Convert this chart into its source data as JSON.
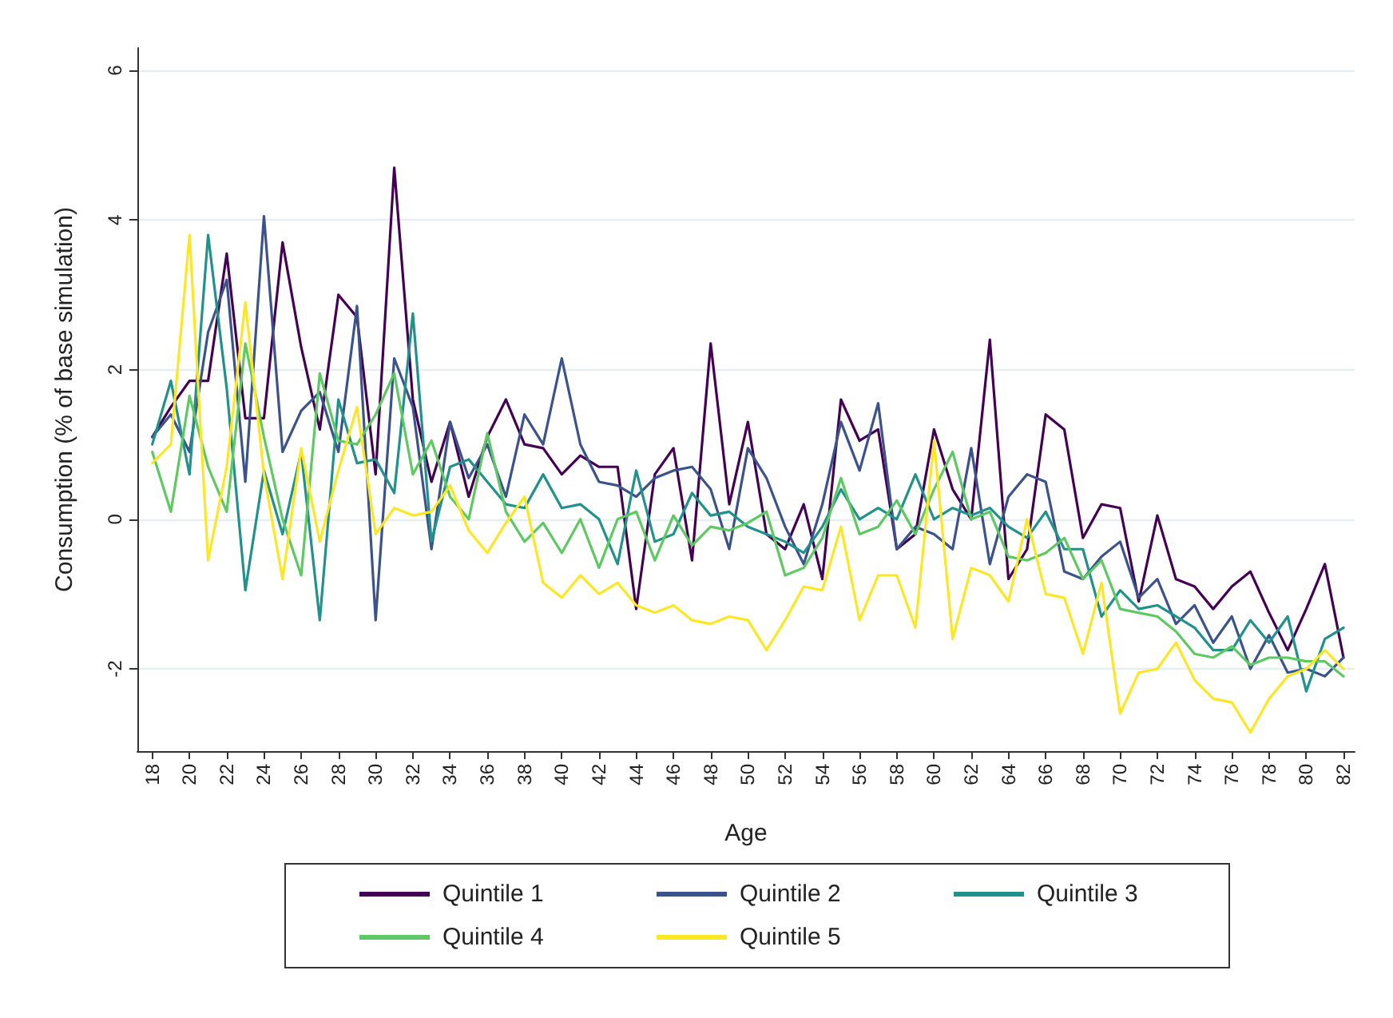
{
  "chart_data": {
    "type": "line",
    "xlabel": "Age",
    "ylabel": "Consumption (% of base simulation)",
    "x": [
      18,
      19,
      20,
      21,
      22,
      23,
      24,
      25,
      26,
      27,
      28,
      29,
      30,
      31,
      32,
      33,
      34,
      35,
      36,
      37,
      38,
      39,
      40,
      41,
      42,
      43,
      44,
      45,
      46,
      47,
      48,
      49,
      50,
      51,
      52,
      53,
      54,
      55,
      56,
      57,
      58,
      59,
      60,
      61,
      62,
      63,
      64,
      65,
      66,
      67,
      68,
      69,
      70,
      71,
      72,
      73,
      74,
      75,
      76,
      77,
      78,
      79,
      80,
      81,
      82
    ],
    "xlim": [
      17.2,
      82.6
    ],
    "xticks": [
      18,
      20,
      22,
      24,
      26,
      28,
      30,
      32,
      34,
      36,
      38,
      40,
      42,
      44,
      46,
      48,
      50,
      52,
      54,
      56,
      58,
      60,
      62,
      64,
      66,
      68,
      70,
      72,
      74,
      76,
      78,
      80,
      82
    ],
    "ylim": [
      -3.1,
      6.3
    ],
    "yticks": [
      -2,
      0,
      2,
      4,
      6
    ],
    "grid": "y",
    "legend": "bottom",
    "marker": "none",
    "line_style": "solid",
    "series": [
      {
        "name": "Quintile 1",
        "color": "#440154",
        "values": [
          1.1,
          1.5,
          1.85,
          1.85,
          3.55,
          1.35,
          1.35,
          3.7,
          2.3,
          1.2,
          3.0,
          2.7,
          0.6,
          4.7,
          1.6,
          0.5,
          1.3,
          0.3,
          1.1,
          1.6,
          1.0,
          0.95,
          0.6,
          0.85,
          0.7,
          0.7,
          -1.2,
          0.6,
          0.95,
          -0.55,
          2.35,
          0.2,
          1.3,
          -0.2,
          -0.4,
          0.2,
          -0.8,
          1.6,
          1.05,
          1.2,
          -0.4,
          -0.2,
          1.2,
          0.4,
          0.0,
          2.4,
          -0.8,
          -0.4,
          1.4,
          1.2,
          -0.25,
          0.2,
          0.15,
          -1.1,
          0.05,
          -0.8,
          -0.9,
          -1.2,
          -0.9,
          -0.7,
          -1.25,
          -1.75,
          -1.2,
          -0.6,
          -1.85
        ]
      },
      {
        "name": "Quintile 2",
        "color": "#3b528b",
        "values": [
          1.1,
          1.4,
          0.9,
          2.5,
          3.2,
          0.5,
          4.05,
          0.9,
          1.45,
          1.7,
          0.9,
          2.85,
          -1.35,
          2.15,
          1.5,
          -0.4,
          1.3,
          0.55,
          1.0,
          0.3,
          1.4,
          1.0,
          2.15,
          1.0,
          0.5,
          0.45,
          0.3,
          0.55,
          0.65,
          0.7,
          0.4,
          -0.4,
          0.95,
          0.55,
          -0.1,
          -0.6,
          0.2,
          1.3,
          0.65,
          1.55,
          -0.4,
          -0.1,
          -0.2,
          -0.4,
          0.95,
          -0.6,
          0.3,
          0.6,
          0.5,
          -0.7,
          -0.8,
          -0.5,
          -0.3,
          -1.05,
          -0.8,
          -1.4,
          -1.15,
          -1.65,
          -1.3,
          -2.0,
          -1.55,
          -2.05,
          -2.0,
          -2.1,
          -1.85
        ]
      },
      {
        "name": "Quintile 3",
        "color": "#21918c",
        "values": [
          1.0,
          1.85,
          0.6,
          3.8,
          1.75,
          -0.95,
          0.65,
          -0.2,
          0.9,
          -1.35,
          1.6,
          0.75,
          0.8,
          0.35,
          2.75,
          -0.3,
          0.7,
          0.8,
          0.5,
          0.2,
          0.15,
          0.6,
          0.15,
          0.2,
          0.0,
          -0.6,
          0.65,
          -0.3,
          -0.2,
          0.35,
          0.05,
          0.1,
          -0.1,
          -0.2,
          -0.3,
          -0.45,
          -0.1,
          0.4,
          0.0,
          0.15,
          0.0,
          0.6,
          0.0,
          0.15,
          0.05,
          0.15,
          -0.1,
          -0.25,
          0.1,
          -0.4,
          -0.4,
          -1.3,
          -0.95,
          -1.2,
          -1.15,
          -1.3,
          -1.45,
          -1.75,
          -1.75,
          -1.35,
          -1.65,
          -1.3,
          -2.3,
          -1.6,
          -1.45
        ]
      },
      {
        "name": "Quintile 4",
        "color": "#5ec962",
        "values": [
          0.9,
          0.1,
          1.65,
          0.7,
          0.1,
          2.35,
          1.1,
          0.0,
          -0.75,
          1.95,
          1.05,
          1.0,
          1.4,
          1.95,
          0.6,
          1.05,
          0.3,
          0.0,
          1.15,
          0.1,
          -0.3,
          -0.05,
          -0.45,
          0.0,
          -0.65,
          0.0,
          0.1,
          -0.55,
          0.05,
          -0.35,
          -0.1,
          -0.15,
          -0.05,
          0.1,
          -0.75,
          -0.65,
          -0.25,
          0.55,
          -0.2,
          -0.1,
          0.25,
          -0.2,
          0.4,
          0.9,
          0.0,
          0.1,
          -0.5,
          -0.55,
          -0.45,
          -0.25,
          -0.8,
          -0.55,
          -1.2,
          -1.25,
          -1.3,
          -1.5,
          -1.8,
          -1.85,
          -1.7,
          -1.95,
          -1.85,
          -1.85,
          -1.9,
          -1.9,
          -2.1
        ]
      },
      {
        "name": "Quintile 5",
        "color": "#fde725",
        "values": [
          0.75,
          1.0,
          3.8,
          -0.55,
          0.7,
          2.9,
          0.6,
          -0.8,
          0.95,
          -0.3,
          0.65,
          1.5,
          -0.2,
          0.15,
          0.05,
          0.1,
          0.45,
          -0.15,
          -0.45,
          -0.05,
          0.3,
          -0.85,
          -1.05,
          -0.75,
          -1.0,
          -0.85,
          -1.15,
          -1.25,
          -1.15,
          -1.35,
          -1.4,
          -1.3,
          -1.35,
          -1.75,
          -1.35,
          -0.9,
          -0.95,
          -0.1,
          -1.35,
          -0.75,
          -0.75,
          -1.45,
          1.05,
          -1.6,
          -0.65,
          -0.75,
          -1.1,
          0.0,
          -1.0,
          -1.05,
          -1.8,
          -0.85,
          -2.6,
          -2.05,
          -2.0,
          -1.65,
          -2.15,
          -2.4,
          -2.45,
          -2.85,
          -2.4,
          -2.1,
          -2.0,
          -1.75,
          -2.0
        ]
      }
    ]
  }
}
